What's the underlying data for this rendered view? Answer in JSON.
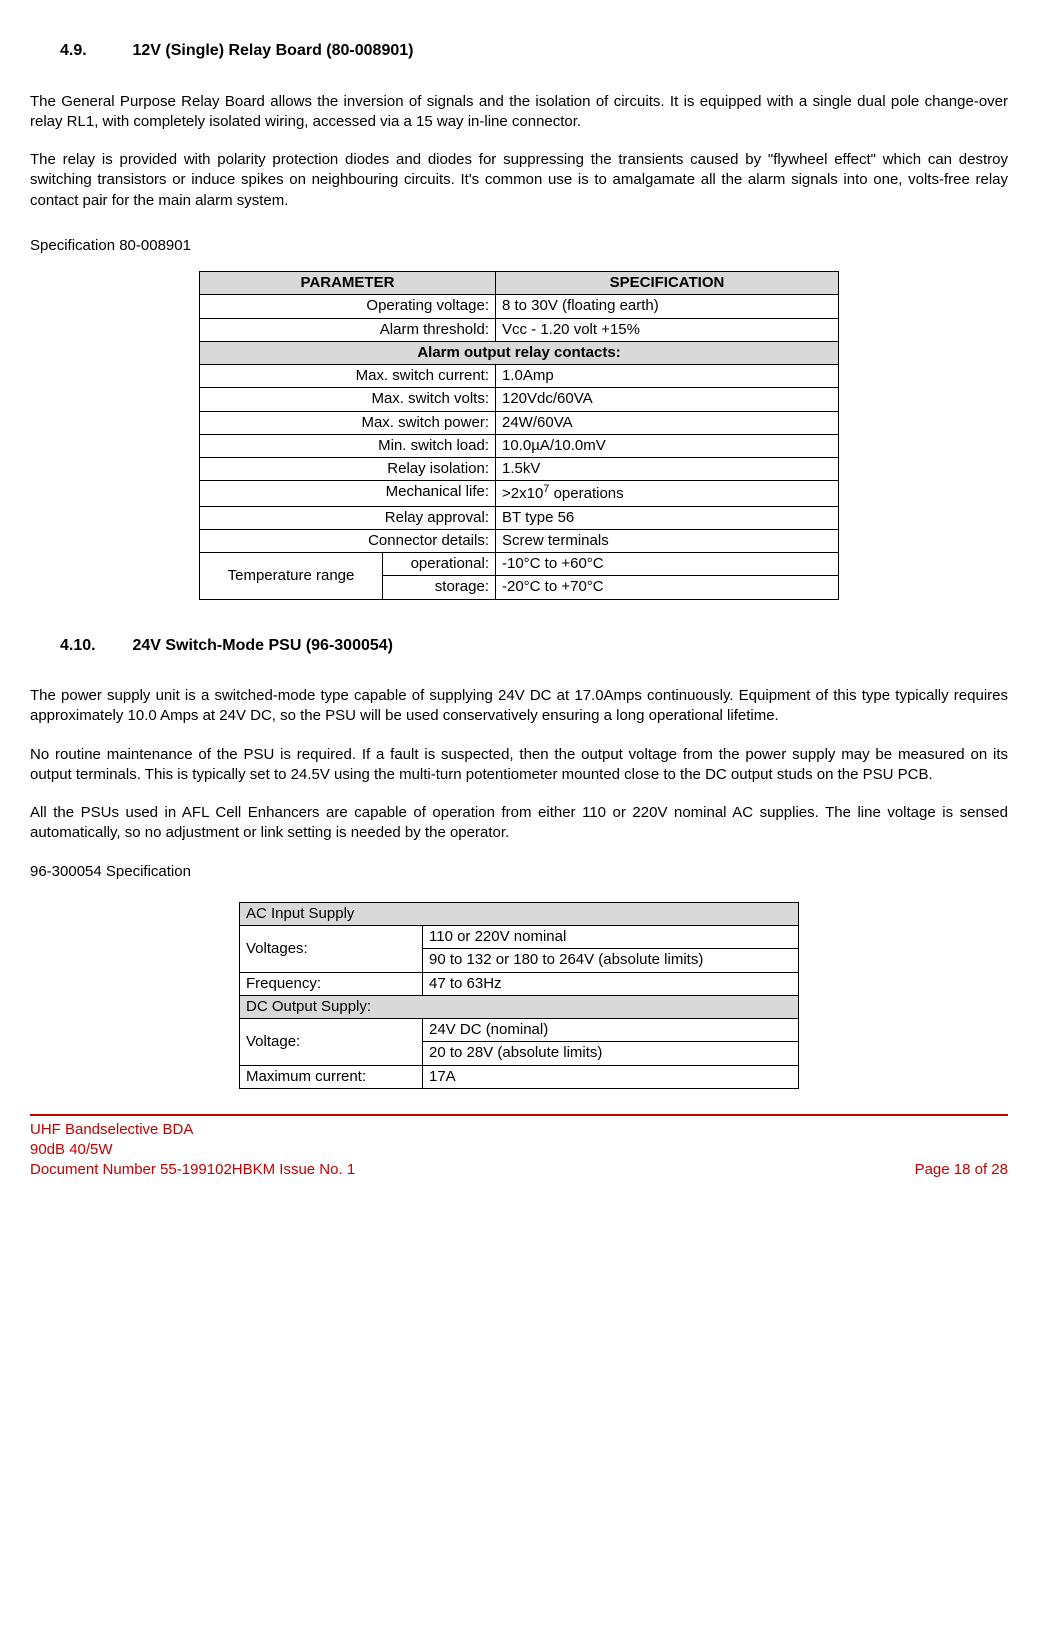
{
  "section1": {
    "num": "4.9.",
    "title": "12V (Single) Relay Board (80-008901)",
    "p1": "The General Purpose Relay Board allows the inversion of signals and the isolation of circuits. It is equipped with a single dual pole change-over relay RL1, with completely isolated wiring, accessed via a 15 way in-line connector.",
    "p2": "The relay is provided with polarity protection diodes and diodes for suppressing the transients caused by \"flywheel effect\" which can destroy switching transistors or induce spikes on neighbouring circuits. It's common use is to amalgamate all the alarm signals into one, volts-free relay contact pair for the main alarm system.",
    "spec_label": "Specification 80-008901"
  },
  "table1": {
    "head_param": "PARAMETER",
    "head_spec": "SPECIFICATION",
    "rows_top": [
      {
        "p": "Operating voltage:",
        "s": "8 to 30V (floating earth)"
      },
      {
        "p": "Alarm threshold:",
        "s": "Vcc - 1.20 volt +15%"
      }
    ],
    "section_header": "Alarm output relay contacts:",
    "rows_mid": [
      {
        "p": "Max. switch current:",
        "s": "1.0Amp"
      },
      {
        "p": "Max. switch volts:",
        "s": "120Vdc/60VA"
      },
      {
        "p": "Max. switch power:",
        "s": "24W/60VA"
      },
      {
        "p": "Min. switch load:",
        "s": "10.0µA/10.0mV"
      },
      {
        "p": "Relay isolation:",
        "s": "1.5kV"
      }
    ],
    "mech_life_label": "Mechanical life:",
    "mech_life_pre": ">2x10",
    "mech_life_sup": "7",
    "mech_life_post": " operations",
    "rows_bot": [
      {
        "p": "Relay approval:",
        "s": "BT type 56"
      },
      {
        "p": "Connector details:",
        "s": "Screw terminals"
      }
    ],
    "temp_label": "Temperature range",
    "temp_rows": [
      {
        "k": "operational:",
        "v": "-10°C to +60°C"
      },
      {
        "k": "storage:",
        "v": "-20°C to +70°C"
      }
    ]
  },
  "section2": {
    "num": "4.10.",
    "title": "24V Switch-Mode PSU (96-300054)",
    "p1": "The power supply unit is a switched-mode type capable of supplying 24V DC at 17.0Amps continuously. Equipment of this type typically requires approximately 10.0 Amps at 24V DC, so the PSU will be used conservatively ensuring a long operational lifetime.",
    "p2": "No routine maintenance of the PSU is required. If a fault is suspected, then the output voltage from the power supply may be measured on its output terminals. This is typically set to 24.5V using the multi-turn potentiometer mounted close to the DC output studs on the PSU PCB.",
    "p3": "All the PSUs used in AFL Cell Enhancers are capable of operation from either 110 or 220V nominal AC supplies. The line voltage is sensed automatically, so no adjustment or link setting is needed by the operator.",
    "spec_label": "96-300054 Specification"
  },
  "table2": {
    "hdr1": "AC Input Supply",
    "voltages_label": "Voltages:",
    "voltages_r1": "110 or 220V nominal",
    "voltages_r2": "90 to 132 or 180 to 264V (absolute limits)",
    "freq_label": "Frequency:",
    "freq_val": "47 to 63Hz",
    "hdr2": "DC Output Supply:",
    "voltage_label": "Voltage:",
    "voltage_r1": "24V DC (nominal)",
    "voltage_r2": "20 to 28V (absolute limits)",
    "maxcur_label": "Maximum current:",
    "maxcur_val": "17A"
  },
  "footer": {
    "l1": "UHF Bandselective BDA",
    "l2": "90dB 40/5W",
    "l3a": "Document Number 55-199102HBKM  Issue No. 1",
    "l3b": "Page 18 of 28"
  }
}
